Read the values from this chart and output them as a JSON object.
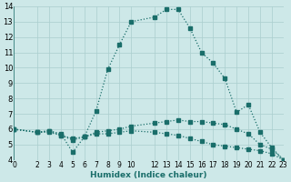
{
  "xlabel": "Humidex (Indice chaleur)",
  "xlim": [
    0,
    23
  ],
  "ylim": [
    4,
    14
  ],
  "yticks": [
    4,
    5,
    6,
    7,
    8,
    9,
    10,
    11,
    12,
    13,
    14
  ],
  "xticks": [
    0,
    2,
    3,
    4,
    5,
    6,
    7,
    8,
    9,
    10,
    12,
    13,
    14,
    15,
    16,
    17,
    18,
    19,
    20,
    21,
    22,
    23
  ],
  "bg_color": "#cde8e8",
  "grid_color": "#aacece",
  "line_color": "#1a6e6a",
  "line1_x": [
    0,
    2,
    3,
    4,
    5,
    6,
    7,
    8,
    9,
    10,
    12,
    13,
    14,
    15,
    16,
    17,
    18,
    19,
    20,
    21,
    22,
    23
  ],
  "line1_y": [
    6.0,
    5.8,
    5.9,
    5.7,
    4.5,
    5.5,
    7.2,
    9.9,
    11.5,
    13.0,
    13.3,
    13.8,
    13.8,
    12.6,
    11.0,
    10.3,
    9.3,
    7.1,
    7.6,
    5.8,
    4.8,
    4.0
  ],
  "line2_x": [
    0,
    2,
    3,
    4,
    5,
    6,
    7,
    8,
    9,
    10,
    12,
    13,
    14,
    15,
    16,
    17,
    18,
    19,
    20,
    21,
    22,
    23
  ],
  "line2_y": [
    6.0,
    5.8,
    5.9,
    5.6,
    5.4,
    5.5,
    5.8,
    5.9,
    6.0,
    6.2,
    6.4,
    6.5,
    6.6,
    6.5,
    6.5,
    6.4,
    6.3,
    6.0,
    5.7,
    5.0,
    4.7,
    4.0
  ],
  "line3_x": [
    0,
    2,
    3,
    4,
    5,
    6,
    7,
    8,
    9,
    10,
    12,
    13,
    14,
    15,
    16,
    17,
    18,
    19,
    20,
    21,
    22,
    23
  ],
  "line3_y": [
    6.0,
    5.8,
    5.8,
    5.6,
    5.3,
    5.5,
    5.7,
    5.7,
    5.8,
    5.9,
    5.8,
    5.7,
    5.6,
    5.4,
    5.2,
    5.0,
    4.9,
    4.8,
    4.7,
    4.6,
    4.4,
    4.0
  ]
}
